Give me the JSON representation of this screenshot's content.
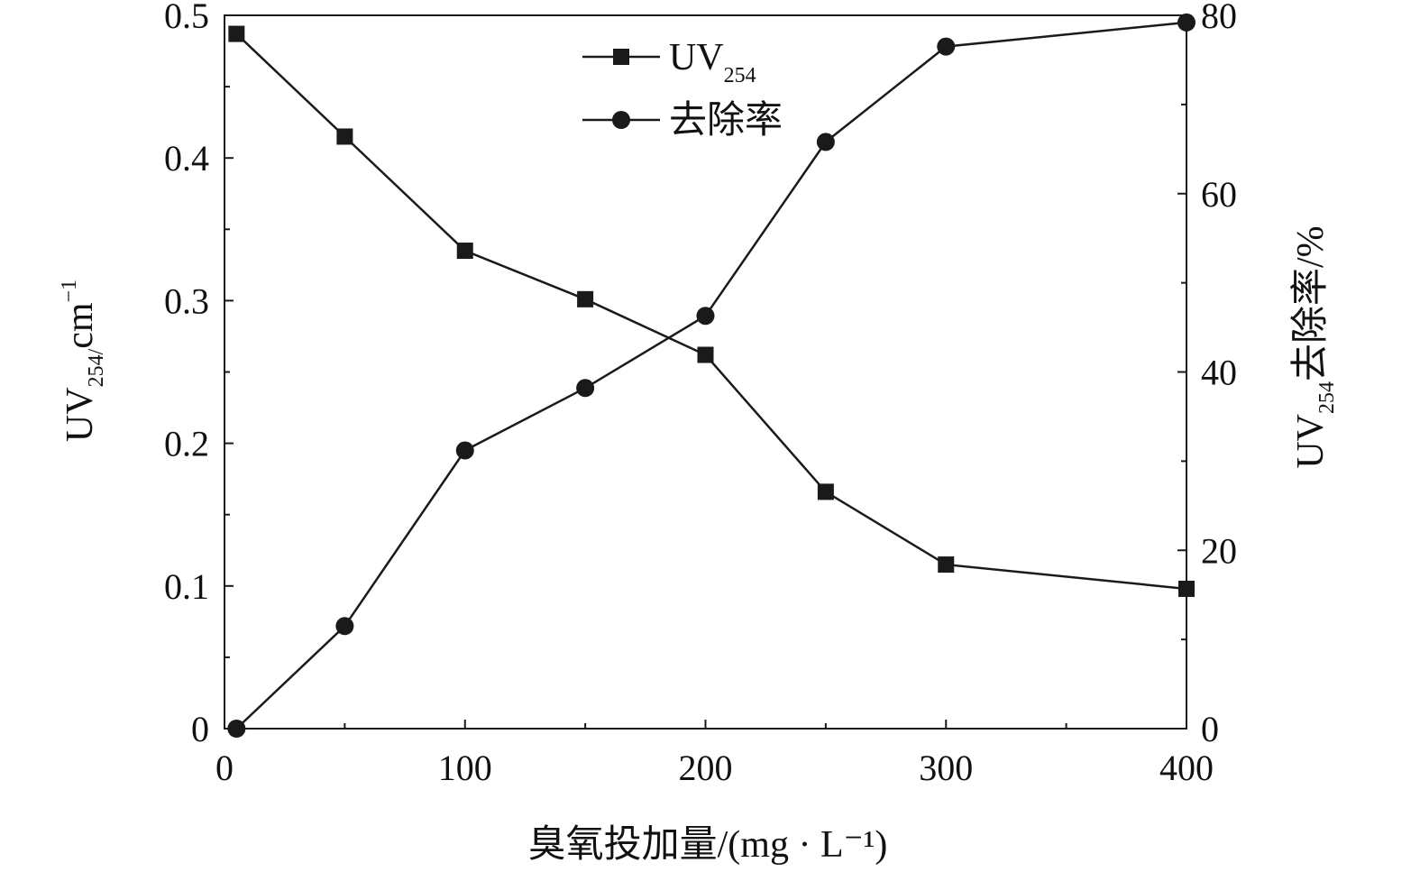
{
  "chart_data": {
    "type": "line",
    "x": [
      5,
      50,
      100,
      150,
      200,
      250,
      300,
      400
    ],
    "xlim": [
      0,
      400
    ],
    "x_ticks": [
      0,
      100,
      200,
      300,
      400
    ],
    "x_tick_labels": [
      "0",
      "100",
      "200",
      "300",
      "400"
    ],
    "xlabel": "臭氧投加量/(mg · L⁻¹)",
    "y_left": {
      "label_main": "UV",
      "label_sub": "254/",
      "label_unit": "cm",
      "label_sup": "−1",
      "lim": [
        0,
        0.5
      ],
      "ticks": [
        0,
        0.1,
        0.2,
        0.3,
        0.4,
        0.5
      ],
      "tick_labels": [
        "0",
        "0.1",
        "0.2",
        "0.3",
        "0.4",
        "0.5"
      ]
    },
    "y_right": {
      "label_main": "UV",
      "label_sub": "254",
      "label_rest": "去除率/%",
      "lim": [
        0,
        80
      ],
      "ticks": [
        0,
        20,
        40,
        60,
        80
      ],
      "tick_labels": [
        "0",
        "20",
        "40",
        "60",
        "80"
      ]
    },
    "series": [
      {
        "name_main": "UV",
        "name_sub": "254",
        "axis": "left",
        "marker": "square",
        "values": [
          0.487,
          0.415,
          0.335,
          0.301,
          0.262,
          0.166,
          0.115,
          0.098
        ]
      },
      {
        "name": "去除率",
        "axis": "right",
        "marker": "circle",
        "values": [
          0,
          11.5,
          31.2,
          38.2,
          46.3,
          65.8,
          76.5,
          79.2
        ]
      }
    ],
    "legend_position": "top-center",
    "grid": false,
    "colors": {
      "line": "#1a1a1a",
      "marker": "#1a1a1a"
    }
  }
}
